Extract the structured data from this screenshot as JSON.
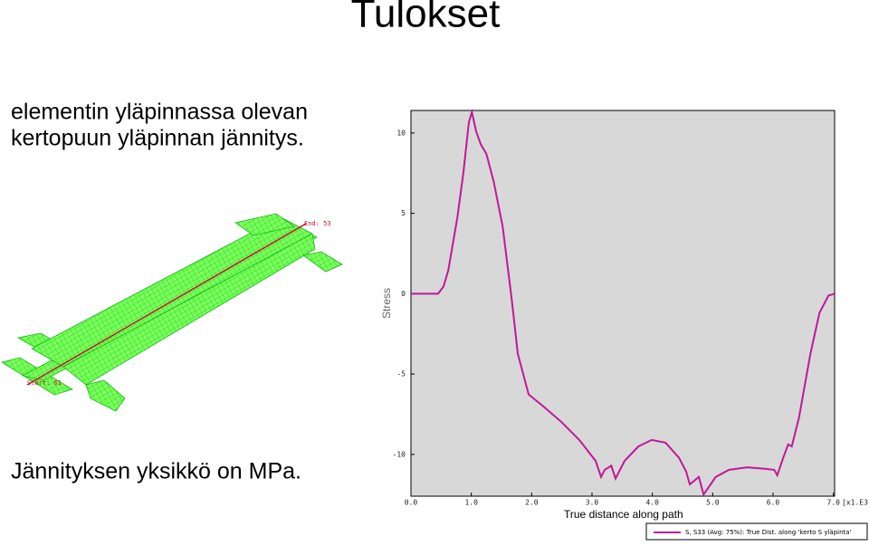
{
  "slide": {
    "title": "Tulokset",
    "text_lines": [
      "elementin yläpinnassa olevan",
      "kertopuun yläpinnan jännitys."
    ],
    "note": "Jännityksen yksikkö on MPa."
  },
  "model": {
    "end_label": "End: 53",
    "start_label": "Start: 61"
  },
  "chart_data": {
    "type": "line",
    "x_label": "True distance along path",
    "y_label": "Stress",
    "x_scale_label": "[x1.E3]",
    "x": [
      0,
      0.45,
      0.54,
      0.62,
      0.77,
      0.87,
      0.96,
      1.01,
      1.08,
      1.16,
      1.25,
      1.37,
      1.52,
      1.67,
      1.77,
      1.95,
      2.19,
      2.49,
      2.79,
      3.06,
      3.15,
      3.21,
      3.32,
      3.39,
      3.54,
      3.77,
      3.99,
      4.22,
      4.44,
      4.56,
      4.62,
      4.77,
      4.85,
      5.05,
      5.27,
      5.57,
      5.87,
      6.02,
      6.07,
      6.17,
      6.25,
      6.31,
      6.43,
      6.62,
      6.77,
      6.92,
      7.02
    ],
    "series": [
      {
        "name": "S, S33 (Avg: 75%): True Dist. along 'kerto S yläpinta'",
        "color": "#c0189a",
        "values": [
          0,
          0,
          0.45,
          1.47,
          4.75,
          7.57,
          10.68,
          11.3,
          10.1,
          9.27,
          8.7,
          7.0,
          4.18,
          -0.34,
          -3.73,
          -6.27,
          -7.0,
          -7.97,
          -9.1,
          -10.4,
          -11.4,
          -10.96,
          -10.7,
          -11.5,
          -10.4,
          -9.5,
          -9.1,
          -9.27,
          -10.2,
          -11.07,
          -11.86,
          -11.4,
          -12.5,
          -11.4,
          -10.96,
          -10.8,
          -10.9,
          -10.96,
          -11.3,
          -10.2,
          -9.38,
          -9.5,
          -7.7,
          -3.73,
          -1.19,
          -0.11,
          0
        ]
      }
    ],
    "xlim": [
      0,
      7.02
    ],
    "ylim": [
      -12.6,
      11.4
    ],
    "xticks": [
      {
        "value": 0,
        "label": "0.0"
      },
      {
        "value": 1,
        "label": "1.0"
      },
      {
        "value": 2,
        "label": "2.0"
      },
      {
        "value": 3,
        "label": "3.0"
      },
      {
        "value": 4,
        "label": "4.0"
      },
      {
        "value": 5,
        "label": "5.0"
      },
      {
        "value": 6,
        "label": "6.0"
      },
      {
        "value": 7,
        "label": "7.0"
      }
    ],
    "yticks": [
      10,
      5,
      0,
      -5,
      -10
    ],
    "background": "#d8d8d8"
  }
}
